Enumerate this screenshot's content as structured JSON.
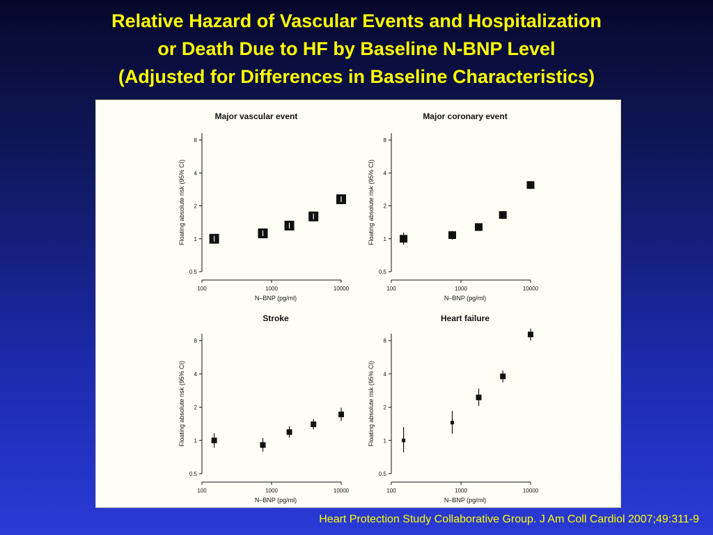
{
  "slide": {
    "title_lines": [
      "Relative Hazard of Vascular Events and Hospitalization",
      "or Death Due to HF by Baseline N-BNP Level",
      "(Adjusted for Differences in Baseline Characteristics)"
    ],
    "citation": "Heart Protection Study Collaborative Group. J Am Coll Cardiol 2007;49:311-9",
    "colors": {
      "title": "#ffff00",
      "citation": "#ffff00",
      "background_top": "#06082a",
      "background_bottom": "#2a3ad6",
      "panel": "#fffef6",
      "marker": "#111111"
    }
  },
  "chart_data": [
    {
      "type": "scatter",
      "title": "Major vascular event",
      "xlabel": "N–BNP (pg/ml)",
      "ylabel": "Floating absolute risk (95% CI)",
      "xscale": "log",
      "yscale": "log",
      "xlim": [
        100,
        10000
      ],
      "ylim": [
        0.5,
        8
      ],
      "xticks": [
        "100",
        "1000",
        "10000"
      ],
      "yticks": [
        "0.5",
        "1",
        "2",
        "4",
        "8"
      ],
      "points": [
        {
          "x": 150,
          "y": 1.0,
          "ci": [
            0.95,
            1.05
          ],
          "size": "large"
        },
        {
          "x": 750,
          "y": 1.12,
          "ci": [
            1.06,
            1.18
          ],
          "size": "large"
        },
        {
          "x": 1800,
          "y": 1.32,
          "ci": [
            1.24,
            1.4
          ],
          "size": "large"
        },
        {
          "x": 4000,
          "y": 1.6,
          "ci": [
            1.5,
            1.7
          ],
          "size": "large"
        },
        {
          "x": 10000,
          "y": 2.3,
          "ci": [
            2.15,
            2.45
          ],
          "size": "large"
        }
      ]
    },
    {
      "type": "scatter",
      "title": "Major coronary event",
      "xlabel": "N–BNP (pg/ml)",
      "ylabel": "Floating absolute risk (95% CI)",
      "xscale": "log",
      "yscale": "log",
      "xlim": [
        100,
        10000
      ],
      "ylim": [
        0.5,
        8
      ],
      "xticks": [
        "100",
        "1000",
        "10000"
      ],
      "yticks": [
        "0.5",
        "1",
        "2",
        "4",
        "8"
      ],
      "points": [
        {
          "x": 150,
          "y": 1.0,
          "ci": [
            0.88,
            1.14
          ],
          "size": "medium"
        },
        {
          "x": 750,
          "y": 1.08,
          "ci": [
            0.98,
            1.18
          ],
          "size": "medium"
        },
        {
          "x": 1800,
          "y": 1.28,
          "ci": [
            1.18,
            1.38
          ],
          "size": "medium"
        },
        {
          "x": 4000,
          "y": 1.65,
          "ci": [
            1.52,
            1.78
          ],
          "size": "medium"
        },
        {
          "x": 10000,
          "y": 3.1,
          "ci": [
            2.85,
            3.35
          ],
          "size": "medium"
        }
      ]
    },
    {
      "type": "scatter",
      "title": "Stroke",
      "xlabel": "N–BNP (pg/ml)",
      "ylabel": "Floating absolute risk (95% CI)",
      "xscale": "log",
      "yscale": "log",
      "xlim": [
        100,
        10000
      ],
      "ylim": [
        0.5,
        8
      ],
      "xticks": [
        "100",
        "1000",
        "10000"
      ],
      "yticks": [
        "0.5",
        "1",
        "2",
        "4",
        "8"
      ],
      "points": [
        {
          "x": 150,
          "y": 1.0,
          "ci": [
            0.86,
            1.16
          ],
          "size": "small"
        },
        {
          "x": 750,
          "y": 0.91,
          "ci": [
            0.79,
            1.05
          ],
          "size": "small"
        },
        {
          "x": 1800,
          "y": 1.19,
          "ci": [
            1.06,
            1.34
          ],
          "size": "small"
        },
        {
          "x": 4000,
          "y": 1.4,
          "ci": [
            1.26,
            1.56
          ],
          "size": "small"
        },
        {
          "x": 10000,
          "y": 1.72,
          "ci": [
            1.5,
            1.98
          ],
          "size": "small"
        }
      ]
    },
    {
      "type": "scatter",
      "title": "Heart failure",
      "xlabel": "N–BNP (pg/ml)",
      "ylabel": "Floating absolute risk (95% CI)",
      "xscale": "log",
      "yscale": "log",
      "xlim": [
        100,
        10000
      ],
      "ylim": [
        0.5,
        8
      ],
      "xticks": [
        "100",
        "1000",
        "10000"
      ],
      "yticks": [
        "0.5",
        "1",
        "2",
        "4",
        "8"
      ],
      "points": [
        {
          "x": 150,
          "y": 1.0,
          "ci": [
            0.78,
            1.32
          ],
          "size": "tiny"
        },
        {
          "x": 750,
          "y": 1.45,
          "ci": [
            1.15,
            1.85
          ],
          "size": "tiny"
        },
        {
          "x": 1800,
          "y": 2.45,
          "ci": [
            2.05,
            2.95
          ],
          "size": "small"
        },
        {
          "x": 4000,
          "y": 3.8,
          "ci": [
            3.35,
            4.3
          ],
          "size": "small"
        },
        {
          "x": 10000,
          "y": 9.1,
          "ci": [
            8.0,
            10.3
          ],
          "size": "small"
        }
      ]
    }
  ]
}
